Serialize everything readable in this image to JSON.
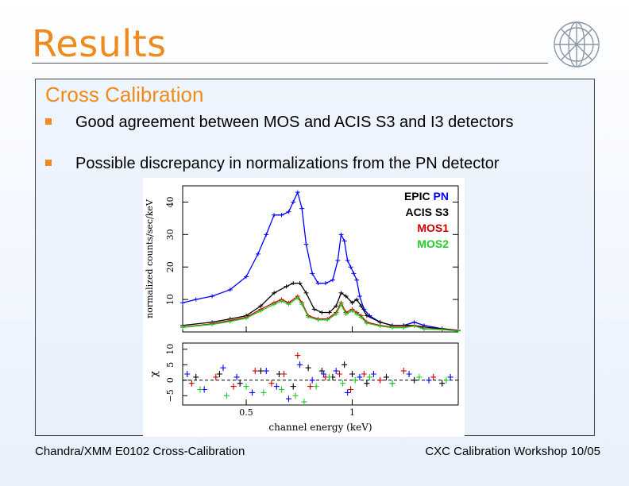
{
  "slide": {
    "title": "Results",
    "section": "Cross Calibration",
    "bullets": [
      "Good agreement between MOS and ACIS S3 and I3 detectors",
      "Possible discrepancy in normalizations from the PN detector"
    ],
    "footer_left": "Chandra/XMM E0102 Cross-Calibration",
    "footer_right": "CXC Calibration Workshop 10/05"
  },
  "colors": {
    "accent": "#f08a1c",
    "acis": "#000000",
    "pn": "#0000ff",
    "mos1": "#cc0000",
    "mos2": "#22cc22"
  },
  "chart_data": [
    {
      "type": "line",
      "title": "",
      "xlabel": "",
      "ylabel": "normalized counts/sec/keV",
      "xscale": "log",
      "xlim": [
        0.33,
        2.0
      ],
      "ylim": [
        0,
        45
      ],
      "yticks": [
        10,
        20,
        30,
        40
      ],
      "series": [
        {
          "name": "EPIC PN",
          "label_parts": [
            "EPIC ",
            "PN"
          ],
          "color": "#0000ff",
          "x": [
            0.33,
            0.36,
            0.4,
            0.45,
            0.5,
            0.54,
            0.57,
            0.6,
            0.63,
            0.66,
            0.68,
            0.7,
            0.72,
            0.74,
            0.77,
            0.8,
            0.84,
            0.88,
            0.91,
            0.93,
            0.95,
            0.97,
            0.99,
            1.01,
            1.03,
            1.05,
            1.08,
            1.12,
            1.2,
            1.3,
            1.4,
            1.5,
            1.6,
            1.8,
            2.0
          ],
          "y": [
            9,
            10,
            11,
            13,
            17,
            24,
            30,
            36,
            36,
            37,
            40,
            43,
            38,
            27,
            18,
            15,
            15,
            16,
            22,
            30,
            28,
            22,
            20,
            18,
            16,
            11,
            7,
            5,
            3,
            2,
            2,
            3,
            2,
            1,
            0.5
          ]
        },
        {
          "name": "ACIS S3",
          "label_parts": [
            "ACIS S3"
          ],
          "color": "#000000",
          "x": [
            0.33,
            0.4,
            0.45,
            0.5,
            0.55,
            0.6,
            0.65,
            0.68,
            0.71,
            0.74,
            0.78,
            0.82,
            0.86,
            0.9,
            0.93,
            0.96,
            1.0,
            1.03,
            1.06,
            1.1,
            1.2,
            1.3,
            1.4,
            1.5,
            1.6,
            1.8,
            2.0
          ],
          "y": [
            2,
            3,
            4,
            5,
            8,
            12,
            14,
            15,
            15,
            12,
            7,
            6,
            6,
            8,
            12,
            11,
            9,
            10,
            8,
            5,
            3,
            2,
            2,
            2,
            1.5,
            1,
            0.5
          ]
        },
        {
          "name": "MOS1",
          "label_parts": [
            "MOS1"
          ],
          "color": "#cc0000",
          "x": [
            0.33,
            0.4,
            0.45,
            0.5,
            0.55,
            0.6,
            0.63,
            0.66,
            0.7,
            0.72,
            0.75,
            0.8,
            0.85,
            0.9,
            0.93,
            0.96,
            1.0,
            1.03,
            1.06,
            1.1,
            1.2,
            1.3,
            1.4,
            1.5,
            1.6,
            1.8,
            2.0
          ],
          "y": [
            1.5,
            2.5,
            3.5,
            4.5,
            7,
            9,
            10,
            9,
            11,
            9,
            5,
            4,
            4,
            6,
            9,
            6,
            7,
            6,
            5,
            3,
            2,
            1.5,
            1.5,
            2,
            1,
            0.8,
            0.4
          ]
        },
        {
          "name": "MOS2",
          "label_parts": [
            "MOS2"
          ],
          "color": "#22cc22",
          "x": [
            0.33,
            0.4,
            0.45,
            0.5,
            0.55,
            0.6,
            0.63,
            0.66,
            0.7,
            0.72,
            0.75,
            0.8,
            0.85,
            0.9,
            0.93,
            0.96,
            1.0,
            1.03,
            1.06,
            1.1,
            1.2,
            1.3,
            1.4,
            1.5,
            1.6,
            1.8,
            2.0
          ],
          "y": [
            1.4,
            2.3,
            3.2,
            4.2,
            6.5,
            8.5,
            9.5,
            8.5,
            10.5,
            8.5,
            4.6,
            3.7,
            3.7,
            5.5,
            8.5,
            5.5,
            6.5,
            5.5,
            4.5,
            2.7,
            1.8,
            1.3,
            1.3,
            1.8,
            0.9,
            0.7,
            0.3
          ]
        }
      ]
    },
    {
      "type": "scatter",
      "xlabel": "channel energy (keV)",
      "ylabel": "χ",
      "xscale": "log",
      "xlim": [
        0.33,
        2.0
      ],
      "ylim": [
        -8,
        12
      ],
      "xticks": [
        0.5,
        1
      ],
      "xtick_labels": [
        "0.5",
        "1"
      ],
      "yticks": [
        -5,
        0,
        5,
        10
      ],
      "ytick_labels": [
        "−5",
        "0",
        "5",
        "10"
      ],
      "series": [
        {
          "name": "ACIS S3",
          "color": "#000000",
          "x": [
            0.36,
            0.42,
            0.48,
            0.55,
            0.62,
            0.68,
            0.75,
            0.82,
            0.88,
            0.95,
            1.0,
            1.1,
            1.25,
            1.5,
            1.8
          ],
          "y": [
            1,
            2,
            -1,
            3,
            2,
            -2,
            4,
            3,
            1,
            5,
            2,
            -1,
            1,
            0,
            -1
          ]
        },
        {
          "name": "EPIC PN",
          "color": "#0000ff",
          "x": [
            0.34,
            0.38,
            0.43,
            0.47,
            0.52,
            0.57,
            0.61,
            0.66,
            0.71,
            0.77,
            0.83,
            0.9,
            0.97,
            1.05,
            1.15,
            1.3,
            1.45,
            1.65,
            1.9
          ],
          "y": [
            2,
            -3,
            4,
            1,
            -4,
            3,
            -2,
            -6,
            5,
            0,
            2,
            3,
            -4,
            1,
            2,
            -1,
            2,
            0,
            1
          ]
        },
        {
          "name": "MOS1",
          "color": "#cc0000",
          "x": [
            0.35,
            0.41,
            0.46,
            0.53,
            0.59,
            0.64,
            0.7,
            0.76,
            0.84,
            0.92,
            0.99,
            1.08,
            1.2,
            1.4,
            1.7
          ],
          "y": [
            -1,
            1,
            -2,
            3,
            -1,
            2,
            8,
            -2,
            1,
            2,
            -3,
            2,
            0,
            3,
            1
          ]
        },
        {
          "name": "MOS2",
          "color": "#22cc22",
          "x": [
            0.37,
            0.44,
            0.5,
            0.56,
            0.63,
            0.69,
            0.73,
            0.79,
            0.86,
            0.94,
            1.02,
            1.12,
            1.3,
            1.55,
            1.85
          ],
          "y": [
            -3,
            -5,
            -2,
            -4,
            -3,
            -5,
            -7,
            -2,
            1,
            -1,
            0,
            1,
            -1,
            1,
            0
          ]
        }
      ]
    }
  ]
}
